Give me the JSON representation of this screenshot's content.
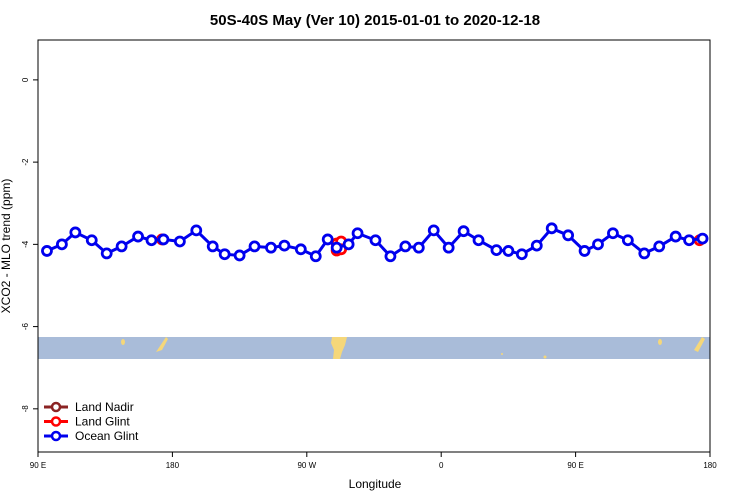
{
  "chart_data": {
    "type": "line",
    "title": "50S-40S May (Ver 10)   2015-01-01 to 2020-12-18",
    "x_label": "Longitude",
    "y_label": "XCO2 - MLO trend (ppm)",
    "xlim": [
      90,
      540
    ],
    "ylim": [
      -9.05,
      0.97
    ],
    "xticks": [
      {
        "value": 90,
        "label": "90 E"
      },
      {
        "value": 180,
        "label": "180"
      },
      {
        "value": 270,
        "label": "90 W"
      },
      {
        "value": 360,
        "label": "0"
      },
      {
        "value": 450,
        "label": "90 E"
      },
      {
        "value": 540,
        "label": "180"
      }
    ],
    "yticks": [
      0,
      -2,
      -4,
      -6,
      -8
    ],
    "legend": "bottom-left",
    "series": [
      {
        "name": "Land Nadir",
        "color": "#8b2323",
        "line": true,
        "x": [],
        "values": []
      },
      {
        "name": "Land Glint",
        "color": "#ff0000",
        "line": false,
        "x": [
          173,
          290,
          290,
          293,
          293,
          533
        ],
        "values": [
          -3.88,
          -3.98,
          -4.15,
          -3.93,
          -4.12,
          -3.9
        ]
      },
      {
        "name": "Ocean Glint",
        "color": "#0000ee",
        "line": true,
        "x": [
          96,
          106,
          115,
          126,
          136,
          146,
          157,
          166,
          174,
          185,
          196,
          207,
          215,
          225,
          235,
          246,
          255,
          266,
          276,
          284,
          290,
          298,
          304,
          316,
          326,
          336,
          345,
          355,
          365,
          375,
          385,
          397,
          405,
          414,
          424,
          434,
          445,
          456,
          465,
          475,
          485,
          496,
          506,
          517,
          526,
          535
        ],
        "values": [
          -4.16,
          -4.0,
          -3.71,
          -3.9,
          -4.22,
          -4.05,
          -3.81,
          -3.9,
          -3.88,
          -3.93,
          -3.66,
          -4.05,
          -4.24,
          -4.27,
          -4.05,
          -4.08,
          -4.03,
          -4.12,
          -4.29,
          -3.88,
          -4.08,
          -4.0,
          -3.73,
          -3.9,
          -4.29,
          -4.05,
          -4.08,
          -3.66,
          -4.08,
          -3.68,
          -3.9,
          -4.14,
          -4.16,
          -4.24,
          -4.03,
          -3.61,
          -3.78,
          -4.16,
          -4.0,
          -3.73,
          -3.9,
          -4.22,
          -4.05,
          -3.81,
          -3.9,
          -3.86
        ]
      }
    ]
  }
}
